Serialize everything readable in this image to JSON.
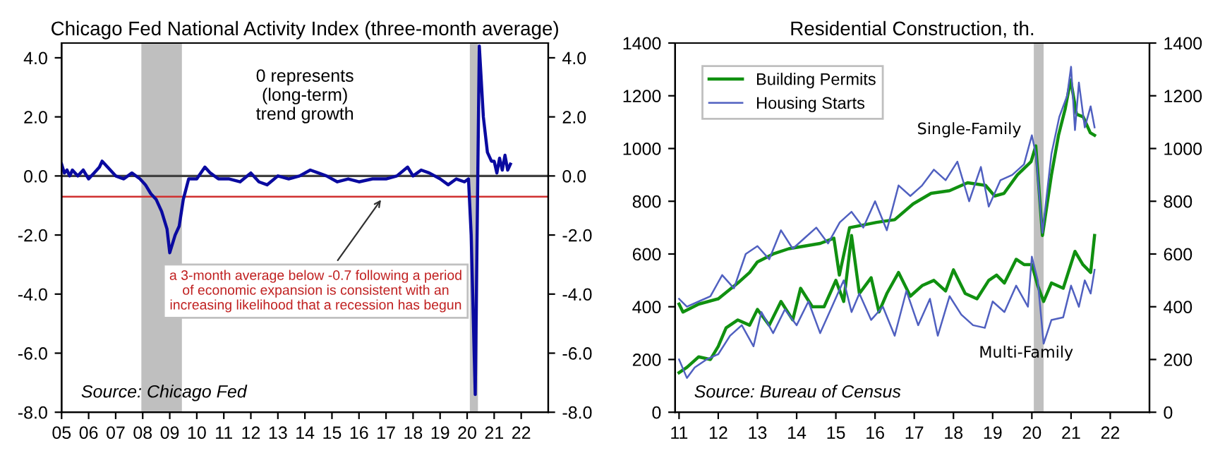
{
  "chart_data": [
    {
      "type": "line",
      "title": "Chicago Fed National Activity Index (three-month average)",
      "xlim": [
        2005,
        2023
      ],
      "xticks": [
        {
          "value": 2005,
          "label": "05"
        },
        {
          "value": 2006,
          "label": "06"
        },
        {
          "value": 2007,
          "label": "07"
        },
        {
          "value": 2008,
          "label": "08"
        },
        {
          "value": 2009,
          "label": "09"
        },
        {
          "value": 2010,
          "label": "10"
        },
        {
          "value": 2011,
          "label": "11"
        },
        {
          "value": 2012,
          "label": "12"
        },
        {
          "value": 2013,
          "label": "13"
        },
        {
          "value": 2014,
          "label": "14"
        },
        {
          "value": 2015,
          "label": "15"
        },
        {
          "value": 2016,
          "label": "16"
        },
        {
          "value": 2017,
          "label": "17"
        },
        {
          "value": 2018,
          "label": "18"
        },
        {
          "value": 2019,
          "label": "19"
        },
        {
          "value": 2020,
          "label": "20"
        },
        {
          "value": 2021,
          "label": "21"
        },
        {
          "value": 2022,
          "label": "22"
        }
      ],
      "ylim": [
        -8,
        4.5
      ],
      "yticks": [
        {
          "value": -8,
          "label": "-8.0"
        },
        {
          "value": -6,
          "label": "-6.0"
        },
        {
          "value": -4,
          "label": "-4.0"
        },
        {
          "value": -2,
          "label": "-2.0"
        },
        {
          "value": 0,
          "label": "0.0"
        },
        {
          "value": 2,
          "label": "2.0"
        },
        {
          "value": 4,
          "label": "4.0"
        }
      ],
      "y2lim": [
        -8,
        4.5
      ],
      "y2ticks": [
        {
          "value": -8,
          "label": "-8.0"
        },
        {
          "value": -6,
          "label": "-6.0"
        },
        {
          "value": -4,
          "label": "-4.0"
        },
        {
          "value": -2,
          "label": "-2.0"
        },
        {
          "value": 0,
          "label": "0.0"
        },
        {
          "value": 2,
          "label": "2.0"
        },
        {
          "value": 4,
          "label": "4.0"
        }
      ],
      "series": [
        {
          "color": "#0a0aa0",
          "x": [
            2005.0,
            2005.1,
            2005.2,
            2005.3,
            2005.4,
            2005.5,
            2005.6,
            2005.8,
            2006.0,
            2006.2,
            2006.4,
            2006.5,
            2006.7,
            2007.0,
            2007.3,
            2007.6,
            2007.9,
            2008.1,
            2008.3,
            2008.5,
            2008.7,
            2008.9,
            2009.0,
            2009.2,
            2009.35,
            2009.5,
            2009.7,
            2010.0,
            2010.3,
            2010.5,
            2010.8,
            2011.2,
            2011.6,
            2012.0,
            2012.3,
            2012.6,
            2013.0,
            2013.4,
            2013.8,
            2014.2,
            2014.5,
            2014.8,
            2015.2,
            2015.6,
            2016.0,
            2016.5,
            2017.0,
            2017.4,
            2017.8,
            2018.0,
            2018.3,
            2018.6,
            2019.0,
            2019.3,
            2019.6,
            2019.9,
            2020.05,
            2020.15,
            2020.3,
            2020.45,
            2020.6,
            2020.75,
            2020.9,
            2021.0,
            2021.1,
            2021.2,
            2021.3,
            2021.4,
            2021.5,
            2021.6
          ],
          "values": [
            0.4,
            0.1,
            0.2,
            0.0,
            0.2,
            0.1,
            0.0,
            0.2,
            -0.1,
            0.1,
            0.3,
            0.5,
            0.3,
            0.0,
            -0.1,
            0.1,
            -0.1,
            -0.3,
            -0.6,
            -0.8,
            -1.2,
            -1.8,
            -2.6,
            -2.0,
            -1.7,
            -0.8,
            -0.1,
            -0.1,
            0.3,
            0.1,
            -0.1,
            -0.1,
            -0.2,
            0.1,
            -0.2,
            -0.3,
            0.0,
            -0.1,
            0.0,
            0.2,
            0.1,
            0.0,
            -0.2,
            -0.1,
            -0.2,
            -0.1,
            -0.1,
            0.0,
            0.3,
            0.0,
            0.2,
            0.1,
            -0.1,
            -0.3,
            -0.1,
            -0.2,
            -0.1,
            -2.0,
            -7.4,
            4.4,
            2.0,
            0.8,
            0.5,
            0.5,
            0.1,
            0.6,
            0.2,
            0.7,
            0.2,
            0.4
          ]
        }
      ],
      "bands": [
        {
          "axis": "x",
          "from": 2007.95,
          "to": 2009.45,
          "color": "#bfbfbf"
        },
        {
          "axis": "x",
          "from": 2020.1,
          "to": 2020.4,
          "color": "#bfbfbf"
        }
      ],
      "ref_lines": [
        {
          "axis": "y",
          "value": 0,
          "color": "#404040"
        },
        {
          "axis": "y",
          "value": -0.7,
          "color": "#d03030"
        }
      ],
      "annotations": [
        "0 represents\n(long-term)\ntrend growth",
        {
          "text": "a 3-month average below -0.7 following a period\nof economic expansion is consistent with an\nincreasing likelihood that a recession has begun",
          "x": 2016.9,
          "y": -0.7
        },
        "Source: Chicago Fed"
      ],
      "grid": false,
      "legend": false
    },
    {
      "type": "line",
      "title": "Residential Construction, th.",
      "xlim": [
        2010.9,
        2023
      ],
      "xticks": [
        {
          "value": 2011,
          "label": "11"
        },
        {
          "value": 2012,
          "label": "12"
        },
        {
          "value": 2013,
          "label": "13"
        },
        {
          "value": 2014,
          "label": "14"
        },
        {
          "value": 2015,
          "label": "15"
        },
        {
          "value": 2016,
          "label": "16"
        },
        {
          "value": 2017,
          "label": "17"
        },
        {
          "value": 2018,
          "label": "18"
        },
        {
          "value": 2019,
          "label": "19"
        },
        {
          "value": 2020,
          "label": "20"
        },
        {
          "value": 2021,
          "label": "21"
        },
        {
          "value": 2022,
          "label": "22"
        }
      ],
      "ylim": [
        0,
        1400
      ],
      "yticks": [
        0,
        200,
        400,
        600,
        800,
        1000,
        1200,
        1400
      ],
      "y2lim": [
        0,
        1400
      ],
      "y2ticks": [
        0,
        200,
        400,
        600,
        800,
        1000,
        1200,
        1400
      ],
      "series": [
        {
          "name": "Building Permits",
          "color": "#109010",
          "x": [
            2011.0,
            2011.1,
            2011.5,
            2012.0,
            2012.5,
            2012.8,
            2013.0,
            2013.4,
            2013.8,
            2014.2,
            2014.6,
            2014.95,
            2015.09,
            2015.35,
            2015.7,
            2016.04,
            2016.5,
            2016.97,
            2017.43,
            2017.9,
            2018.36,
            2018.82,
            2019.05,
            2019.29,
            2019.63,
            2019.98,
            2020.1,
            2020.27,
            2020.5,
            2020.68,
            2020.85,
            2020.99,
            2021.14,
            2021.31,
            2021.49,
            2021.6
          ],
          "values": [
            410,
            380,
            410,
            430,
            490,
            530,
            570,
            600,
            620,
            630,
            640,
            660,
            520,
            700,
            710,
            720,
            730,
            790,
            830,
            840,
            870,
            860,
            820,
            830,
            900,
            950,
            1010,
            670,
            900,
            1050,
            1150,
            1260,
            1130,
            1120,
            1060,
            1050
          ]
        },
        {
          "name": "Housing Starts",
          "color": "#5060c0",
          "x": [
            2011.0,
            2011.2,
            2011.5,
            2011.8,
            2012.1,
            2012.4,
            2012.7,
            2013.0,
            2013.3,
            2013.6,
            2013.9,
            2014.2,
            2014.5,
            2014.8,
            2015.1,
            2015.4,
            2015.7,
            2016.0,
            2016.3,
            2016.6,
            2016.9,
            2017.2,
            2017.5,
            2017.8,
            2018.1,
            2018.4,
            2018.7,
            2018.9,
            2019.2,
            2019.5,
            2019.8,
            2020.0,
            2020.1,
            2020.27,
            2020.5,
            2020.7,
            2020.9,
            2021.0,
            2021.1,
            2021.2,
            2021.35,
            2021.5,
            2021.6
          ],
          "values": [
            430,
            400,
            420,
            440,
            520,
            470,
            600,
            630,
            580,
            690,
            620,
            660,
            700,
            640,
            720,
            760,
            700,
            800,
            690,
            860,
            820,
            860,
            920,
            880,
            950,
            800,
            930,
            780,
            880,
            900,
            940,
            1050,
            980,
            680,
            980,
            1120,
            1200,
            1310,
            1070,
            1250,
            1080,
            1160,
            1080
          ]
        },
        {
          "color": "#109010",
          "x": [
            2011.0,
            2011.2,
            2011.5,
            2011.8,
            2012.0,
            2012.2,
            2012.5,
            2012.8,
            2013.0,
            2013.3,
            2013.6,
            2013.9,
            2014.1,
            2014.4,
            2014.7,
            2015.0,
            2015.2,
            2015.4,
            2015.6,
            2015.9,
            2016.1,
            2016.3,
            2016.6,
            2016.9,
            2017.2,
            2017.5,
            2017.8,
            2018.0,
            2018.3,
            2018.6,
            2018.9,
            2019.1,
            2019.3,
            2019.6,
            2019.8,
            2020.0,
            2020.15,
            2020.3,
            2020.5,
            2020.8,
            2021.1,
            2021.3,
            2021.5,
            2021.6
          ],
          "values": [
            150,
            170,
            210,
            200,
            250,
            320,
            350,
            330,
            390,
            330,
            420,
            350,
            470,
            400,
            400,
            500,
            420,
            670,
            450,
            510,
            380,
            450,
            530,
            440,
            480,
            500,
            460,
            540,
            450,
            430,
            500,
            520,
            490,
            580,
            560,
            560,
            480,
            420,
            490,
            470,
            610,
            560,
            530,
            670
          ]
        },
        {
          "color": "#5060c0",
          "x": [
            2011.0,
            2011.2,
            2011.4,
            2011.7,
            2012.0,
            2012.3,
            2012.6,
            2012.9,
            2013.1,
            2013.4,
            2013.7,
            2014.0,
            2014.3,
            2014.6,
            2014.9,
            2015.2,
            2015.4,
            2015.6,
            2015.9,
            2016.2,
            2016.5,
            2016.8,
            2017.1,
            2017.4,
            2017.6,
            2017.9,
            2018.2,
            2018.5,
            2018.8,
            2019.0,
            2019.3,
            2019.6,
            2019.9,
            2020.0,
            2020.15,
            2020.3,
            2020.5,
            2020.8,
            2021.0,
            2021.2,
            2021.35,
            2021.5,
            2021.6
          ],
          "values": [
            200,
            130,
            170,
            200,
            220,
            290,
            330,
            250,
            380,
            300,
            390,
            330,
            420,
            300,
            400,
            500,
            380,
            450,
            350,
            400,
            290,
            460,
            330,
            430,
            290,
            440,
            370,
            330,
            320,
            420,
            380,
            480,
            400,
            590,
            500,
            260,
            350,
            360,
            480,
            400,
            500,
            450,
            540
          ]
        }
      ],
      "bands": [
        {
          "axis": "x",
          "from": 2020.05,
          "to": 2020.3,
          "color": "#bfbfbf"
        }
      ],
      "annotations": [
        "Single-Family",
        "Multi-Family",
        "Source: Bureau of Census"
      ],
      "grid": false,
      "legend": "top left"
    }
  ]
}
